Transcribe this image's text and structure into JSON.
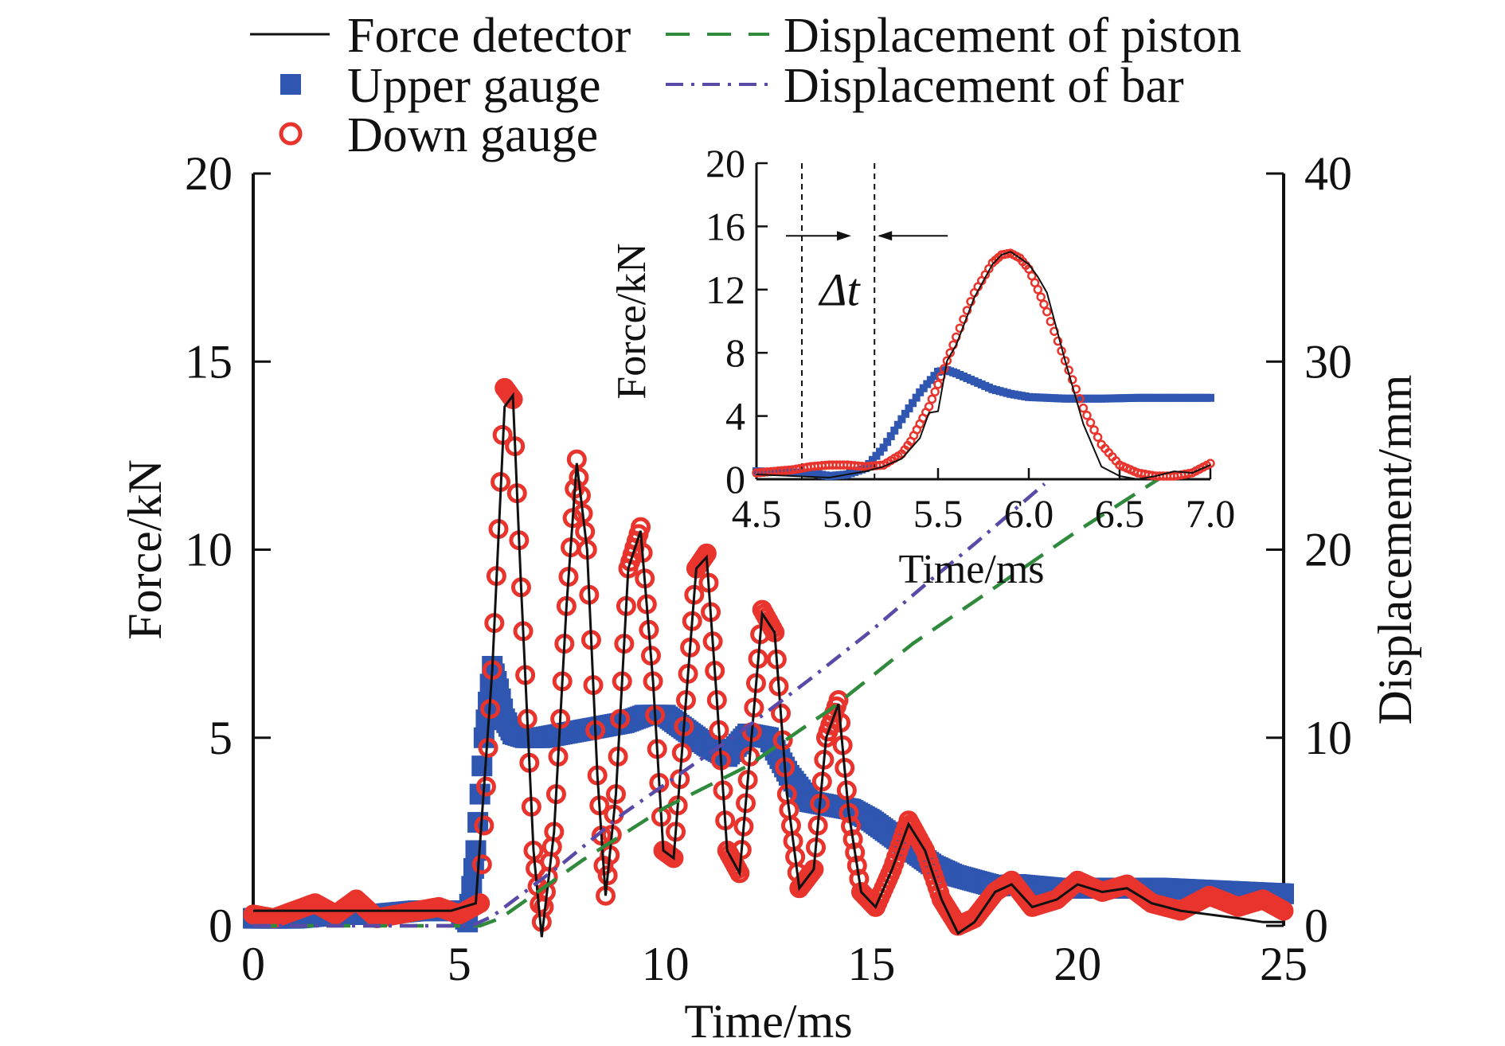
{
  "chart_data": [
    {
      "type": "line",
      "id": "main",
      "xlabel": "Time/ms",
      "ylabel": "Force/kN",
      "y2label": "Displacement/mm",
      "xlim": [
        0,
        25
      ],
      "ylim": [
        0,
        20
      ],
      "y2lim": [
        0,
        40
      ],
      "xticks": [
        0,
        5,
        10,
        15,
        20,
        25
      ],
      "yticks": [
        0,
        5,
        10,
        15,
        20
      ],
      "y2ticks": [
        0,
        10,
        20,
        30,
        40
      ],
      "legend_position": "top",
      "grid": false,
      "series": [
        {
          "name": "Force detector",
          "style": "solid",
          "color": "#111111",
          "axis": "left",
          "x": [
            0,
            4.8,
            5.4,
            5.8,
            6.1,
            6.3,
            6.5,
            6.8,
            7.0,
            7.3,
            7.6,
            7.85,
            8.1,
            8.35,
            8.55,
            8.8,
            9.1,
            9.4,
            9.7,
            9.95,
            10.2,
            10.5,
            10.75,
            11.0,
            11.25,
            11.5,
            11.8,
            12.05,
            12.35,
            12.65,
            12.95,
            13.25,
            13.6,
            13.9,
            14.2,
            14.45,
            14.75,
            15.1,
            15.5,
            15.9,
            16.3,
            16.7,
            17.1,
            17.5,
            18.0,
            18.4,
            18.9,
            19.5,
            20.0,
            20.6,
            21.2,
            21.8,
            22.5,
            23.2,
            23.9,
            24.5,
            25.0
          ],
          "y": [
            0.4,
            0.4,
            0.6,
            6.8,
            13.8,
            14.1,
            9.0,
            2.0,
            -0.3,
            2.5,
            8.5,
            12.3,
            10.0,
            4.0,
            0.8,
            3.5,
            9.5,
            10.5,
            6.5,
            2.0,
            1.8,
            6.0,
            9.5,
            9.8,
            6.0,
            2.0,
            1.4,
            4.5,
            8.3,
            7.8,
            3.5,
            1.0,
            1.5,
            5.0,
            5.9,
            3.0,
            0.9,
            0.5,
            1.5,
            2.7,
            2.0,
            0.7,
            -0.2,
            0.1,
            0.9,
            1.1,
            0.5,
            0.7,
            1.1,
            0.9,
            1.0,
            0.6,
            0.4,
            0.3,
            0.2,
            0.1,
            0.1
          ]
        },
        {
          "name": "Upper gauge",
          "style": "square-markers",
          "color": "#2f56b0",
          "axis": "left",
          "x": [
            0,
            1.0,
            2.0,
            3.0,
            4.0,
            5.0,
            5.2,
            5.4,
            5.6,
            5.8,
            5.95,
            6.1,
            6.3,
            6.6,
            7.0,
            7.5,
            8.0,
            8.5,
            9.0,
            9.5,
            10.0,
            10.5,
            11.0,
            11.5,
            12.0,
            12.5,
            13.0,
            13.5,
            14.0,
            14.5,
            15.0,
            15.5,
            16.0,
            16.5,
            17.0,
            17.5,
            18.0,
            18.5,
            19.0,
            19.5,
            20.0,
            21.0,
            22.0,
            23.0,
            24.0,
            25.0
          ],
          "y": [
            0.2,
            0.2,
            0.3,
            0.3,
            0.4,
            0.4,
            0.1,
            2.0,
            5.0,
            6.9,
            6.3,
            5.5,
            5.1,
            5.0,
            5.0,
            5.1,
            5.2,
            5.3,
            5.4,
            5.6,
            5.6,
            5.2,
            4.8,
            4.5,
            5.1,
            5.0,
            4.0,
            3.3,
            3.2,
            3.1,
            2.8,
            2.4,
            2.0,
            1.6,
            1.35,
            1.2,
            1.05,
            1.1,
            1.05,
            1.0,
            1.0,
            1.0,
            1.0,
            0.95,
            0.9,
            0.85
          ]
        },
        {
          "name": "Down gauge",
          "style": "circle-markers",
          "color": "#e8342c",
          "axis": "left",
          "x": [
            0,
            0.5,
            1.0,
            1.5,
            2.0,
            2.5,
            3.0,
            3.5,
            4.0,
            4.5,
            5.0,
            5.5,
            5.8,
            6.1,
            6.3,
            6.5,
            6.8,
            7.0,
            7.3,
            7.6,
            7.85,
            8.1,
            8.35,
            8.55,
            8.8,
            9.1,
            9.4,
            9.7,
            9.95,
            10.2,
            10.5,
            10.75,
            11.0,
            11.25,
            11.5,
            11.8,
            12.05,
            12.35,
            12.65,
            12.95,
            13.25,
            13.6,
            13.9,
            14.2,
            14.45,
            14.75,
            15.1,
            15.5,
            15.9,
            16.3,
            16.7,
            17.1,
            17.5,
            18.0,
            18.4,
            18.9,
            19.5,
            20.0,
            20.6,
            21.2,
            21.8,
            22.5,
            23.2,
            23.9,
            24.5,
            25.0
          ],
          "y": [
            0.3,
            0.2,
            0.4,
            0.6,
            0.3,
            0.7,
            0.2,
            0.3,
            0.4,
            0.5,
            0.3,
            0.6,
            6.8,
            14.3,
            14.0,
            9.0,
            2.0,
            0.1,
            2.5,
            8.5,
            12.4,
            10.0,
            4.0,
            0.8,
            3.5,
            9.5,
            10.6,
            6.5,
            2.0,
            1.8,
            6.0,
            9.5,
            9.9,
            6.0,
            2.0,
            1.4,
            4.5,
            8.4,
            7.8,
            3.5,
            1.0,
            1.5,
            5.0,
            6.0,
            3.0,
            0.9,
            0.5,
            1.5,
            2.8,
            2.0,
            0.7,
            0.0,
            0.2,
            0.9,
            1.2,
            0.5,
            0.7,
            1.2,
            0.9,
            1.1,
            0.6,
            0.4,
            0.8,
            0.5,
            0.7,
            0.4
          ]
        },
        {
          "name": "Displacement of piston",
          "style": "dashed",
          "color": "#2f8a3c",
          "axis": "right",
          "x": [
            0,
            5.5,
            6.0,
            8.0,
            10.0,
            12.0,
            14.0,
            16.0,
            18.0,
            20.0,
            22.5
          ],
          "y": [
            0.0,
            0.0,
            0.4,
            3.5,
            6.3,
            8.5,
            11.5,
            15.0,
            18.0,
            21.0,
            24.5
          ]
        },
        {
          "name": "Displacement of bar",
          "style": "dash-dot",
          "color": "#5a4aa8",
          "axis": "right",
          "x": [
            0,
            5.3,
            5.8,
            7.5,
            9.0,
            10.5,
            12.0,
            13.5,
            15.0,
            16.5,
            17.5,
            19.2
          ],
          "y": [
            0.0,
            0.0,
            0.5,
            3.3,
            6.0,
            8.3,
            10.6,
            13.1,
            15.7,
            18.5,
            20.3,
            23.5
          ]
        }
      ]
    },
    {
      "type": "line",
      "id": "inset",
      "xlabel": "Time/ms",
      "ylabel": "Force/kN",
      "xlim": [
        4.5,
        7.0
      ],
      "ylim": [
        0,
        20
      ],
      "xticks": [
        "4.5",
        "5.0",
        "5.5",
        "6.0",
        "6.5",
        "7.0"
      ],
      "yticks": [
        0,
        4,
        8,
        12,
        16,
        20
      ],
      "annotation": "Δt",
      "delta_t_lines": [
        4.75,
        5.15
      ],
      "series": [
        {
          "name": "Force detector",
          "style": "solid",
          "color": "#111111",
          "x": [
            4.5,
            4.7,
            4.9,
            5.0,
            5.1,
            5.2,
            5.3,
            5.4,
            5.45,
            5.5,
            5.55,
            5.6,
            5.7,
            5.8,
            5.85,
            5.9,
            5.95,
            6.0,
            6.05,
            6.1,
            6.2,
            6.3,
            6.4,
            6.5,
            6.6,
            6.7,
            6.8,
            6.9,
            7.0
          ],
          "y": [
            0.3,
            0.2,
            0.1,
            0.3,
            0.5,
            0.8,
            1.3,
            2.6,
            4.2,
            4.3,
            7.5,
            8.5,
            11.5,
            13.6,
            14.2,
            14.4,
            14.0,
            13.6,
            12.8,
            11.8,
            7.5,
            3.5,
            0.8,
            0.2,
            0.0,
            0.2,
            0.5,
            0.4,
            0.9
          ]
        },
        {
          "name": "Upper gauge",
          "style": "square-markers",
          "color": "#2f56b0",
          "x": [
            4.5,
            4.8,
            4.9,
            5.0,
            5.1,
            5.2,
            5.3,
            5.4,
            5.5,
            5.55,
            5.6,
            5.7,
            5.8,
            5.9,
            6.0,
            6.2,
            6.4,
            6.6,
            6.8,
            7.0
          ],
          "y": [
            0.5,
            0.4,
            0.2,
            0.3,
            0.7,
            2.0,
            3.8,
            5.5,
            6.8,
            6.9,
            6.7,
            6.2,
            5.7,
            5.4,
            5.2,
            5.1,
            5.1,
            5.15,
            5.15,
            5.15
          ]
        },
        {
          "name": "Down gauge",
          "style": "circle-markers",
          "color": "#e8342c",
          "x": [
            4.5,
            4.6,
            4.7,
            4.8,
            4.9,
            5.0,
            5.1,
            5.2,
            5.3,
            5.35,
            5.4,
            5.45,
            5.5,
            5.55,
            5.6,
            5.7,
            5.8,
            5.85,
            5.9,
            5.95,
            6.0,
            6.05,
            6.1,
            6.2,
            6.3,
            6.4,
            6.5,
            6.6,
            6.7,
            6.8,
            6.9,
            7.0
          ],
          "y": [
            0.4,
            0.5,
            0.6,
            0.8,
            0.9,
            0.9,
            0.8,
            0.9,
            1.6,
            2.4,
            3.5,
            4.6,
            6.0,
            7.5,
            9.0,
            11.8,
            13.7,
            14.2,
            14.3,
            14.0,
            13.3,
            12.0,
            10.6,
            7.5,
            4.5,
            2.2,
            0.9,
            0.4,
            0.2,
            0.2,
            0.4,
            1.0
          ]
        }
      ]
    }
  ]
}
